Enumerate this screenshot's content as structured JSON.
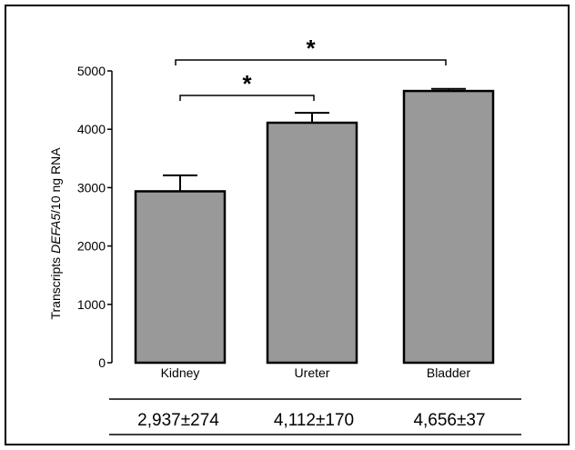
{
  "chart_data": {
    "type": "bar",
    "categories": [
      "Kidney",
      "Ureter",
      "Bladder"
    ],
    "values": [
      2937,
      4112,
      4656
    ],
    "errors": [
      274,
      170,
      37
    ],
    "ylabel_prefix": "Transcripts ",
    "ylabel_italic": "DEFA5",
    "ylabel_suffix": "/10 ng RNA",
    "ylim": [
      0,
      5000
    ],
    "yticks": [
      0,
      1000,
      2000,
      3000,
      4000,
      5000
    ],
    "ytick_labels": [
      "0",
      "1000",
      "2000",
      "3000",
      "4000",
      "5000"
    ],
    "bar_color": "#999999",
    "grid": false,
    "significance": [
      {
        "from": "Kidney",
        "to": "Ureter",
        "label": "*"
      },
      {
        "from": "Kidney",
        "to": "Bladder",
        "label": "*"
      }
    ],
    "summary_row": [
      "2,937±274",
      "4,112±170",
      "4,656±37"
    ]
  }
}
